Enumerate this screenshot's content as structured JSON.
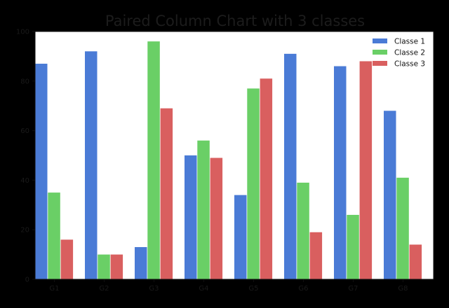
{
  "chart_data": {
    "type": "bar",
    "title": "Paired Column Chart with 3 classes",
    "xlabel": "",
    "ylabel": "",
    "categories": [
      "G1",
      "G2",
      "G3",
      "G4",
      "G5",
      "G6",
      "G7",
      "G8"
    ],
    "series": [
      {
        "name": "Classe 1",
        "color": "#4a7bd6",
        "values": [
          87,
          92,
          13,
          50,
          34,
          91,
          86,
          68
        ]
      },
      {
        "name": "Classe 2",
        "color": "#6acf66",
        "values": [
          35,
          10,
          96,
          56,
          77,
          39,
          26,
          41
        ]
      },
      {
        "name": "Classe 3",
        "color": "#d95f5f",
        "values": [
          16,
          10,
          69,
          49,
          81,
          19,
          88,
          14
        ]
      }
    ],
    "ylim": [
      0,
      100
    ],
    "yticks": [
      0,
      20,
      40,
      60,
      80,
      100
    ],
    "grid": false,
    "legend_position": "top-right"
  },
  "style": {
    "background": "#000000",
    "plot_background": "#ffffff",
    "axis_color": "#111111"
  }
}
